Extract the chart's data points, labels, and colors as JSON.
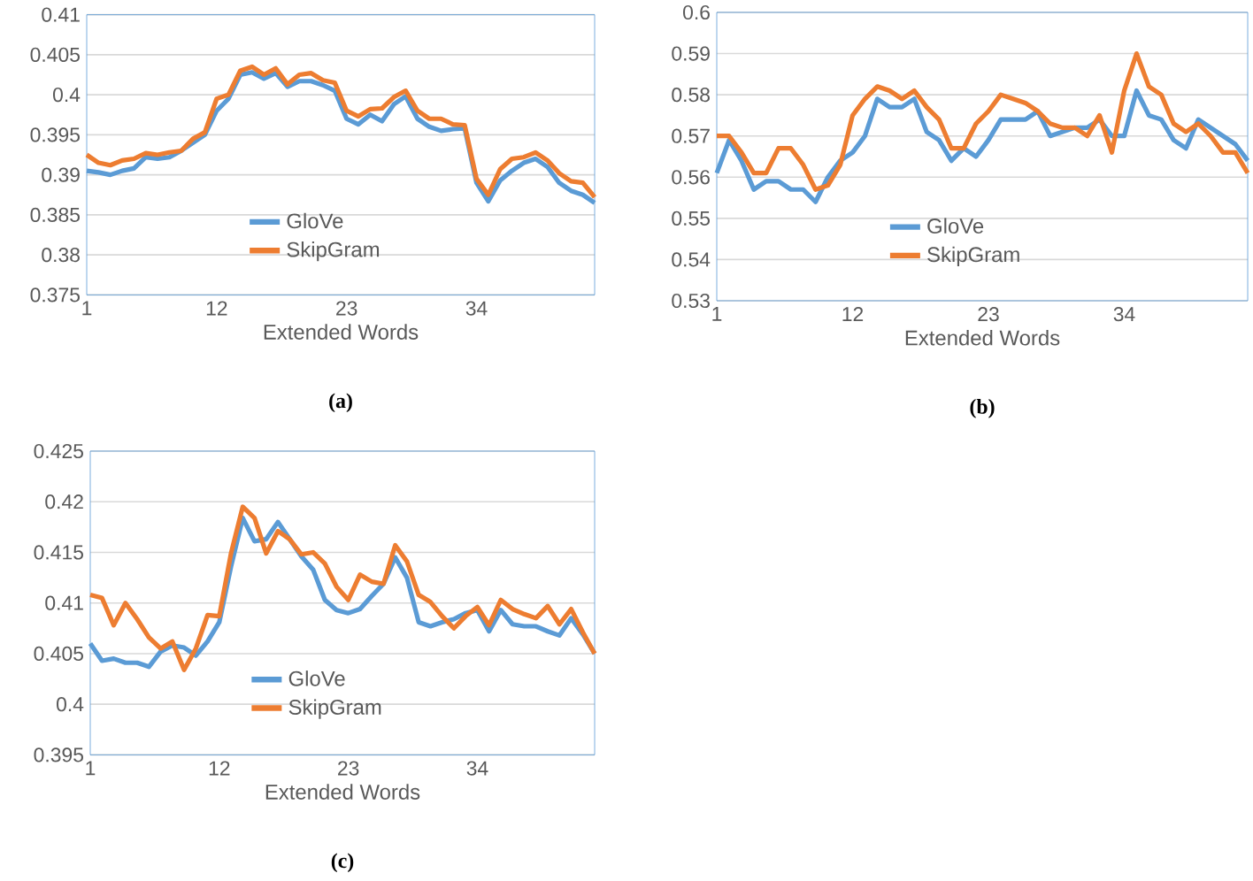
{
  "chart_data": [
    {
      "type": "line",
      "xlabel": "Extended Words",
      "annotations": [
        "(a)"
      ],
      "categories": [
        "1",
        null,
        null,
        null,
        null,
        null,
        null,
        null,
        null,
        null,
        null,
        "12",
        null,
        null,
        null,
        null,
        null,
        null,
        null,
        null,
        null,
        null,
        "23",
        null,
        null,
        null,
        null,
        null,
        null,
        null,
        null,
        null,
        null,
        "34",
        null,
        null,
        null,
        null,
        null,
        null,
        null,
        null,
        null,
        null
      ],
      "series": [
        {
          "name": "GloVe",
          "color": "#5b9bd5",
          "values": [
            0.3905,
            0.3903,
            0.39,
            0.3905,
            0.3908,
            0.3922,
            0.392,
            0.3922,
            0.393,
            0.394,
            0.395,
            0.398,
            0.3995,
            0.4025,
            0.4028,
            0.402,
            0.4027,
            0.401,
            0.4017,
            0.4017,
            0.4012,
            0.4005,
            0.397,
            0.3963,
            0.3975,
            0.3967,
            0.3988,
            0.3998,
            0.397,
            0.396,
            0.3955,
            0.3957,
            0.3958,
            0.389,
            0.3867,
            0.3893,
            0.3905,
            0.3915,
            0.392,
            0.391,
            0.389,
            0.388,
            0.3875,
            0.3865
          ]
        },
        {
          "name": "SkipGram",
          "color": "#ed7d31",
          "values": [
            0.3925,
            0.3915,
            0.3912,
            0.3918,
            0.392,
            0.3927,
            0.3925,
            0.3928,
            0.393,
            0.3945,
            0.3953,
            0.3995,
            0.4,
            0.403,
            0.4035,
            0.4025,
            0.4033,
            0.4013,
            0.4025,
            0.4027,
            0.4018,
            0.4015,
            0.398,
            0.3973,
            0.3982,
            0.3983,
            0.3997,
            0.4005,
            0.398,
            0.397,
            0.397,
            0.3963,
            0.3962,
            0.3895,
            0.3875,
            0.3907,
            0.392,
            0.3922,
            0.3928,
            0.3918,
            0.3902,
            0.3892,
            0.389,
            0.3872
          ]
        }
      ],
      "ylim": [
        0.375,
        0.41
      ],
      "yticks": [
        0.375,
        0.38,
        0.385,
        0.39,
        0.395,
        0.4,
        0.405,
        0.41
      ],
      "grid": "y",
      "legend": "bottom"
    },
    {
      "type": "line",
      "xlabel": "Extended Words",
      "annotations": [
        "(b)"
      ],
      "categories": [
        "1",
        null,
        null,
        null,
        null,
        null,
        null,
        null,
        null,
        null,
        null,
        "12",
        null,
        null,
        null,
        null,
        null,
        null,
        null,
        null,
        null,
        null,
        "23",
        null,
        null,
        null,
        null,
        null,
        null,
        null,
        null,
        null,
        null,
        "34",
        null,
        null,
        null,
        null,
        null,
        null,
        null,
        null,
        null,
        null
      ],
      "series": [
        {
          "name": "GloVe",
          "color": "#5b9bd5",
          "values": [
            0.561,
            0.569,
            0.564,
            0.557,
            0.559,
            0.559,
            0.557,
            0.557,
            0.554,
            0.56,
            0.564,
            0.566,
            0.57,
            0.579,
            0.577,
            0.577,
            0.579,
            0.571,
            0.569,
            0.564,
            0.567,
            0.565,
            0.569,
            0.574,
            0.574,
            0.574,
            0.576,
            0.57,
            0.571,
            0.572,
            0.572,
            0.574,
            0.57,
            0.57,
            0.581,
            0.575,
            0.574,
            0.569,
            0.567,
            0.574,
            0.572,
            0.57,
            0.568,
            0.564
          ]
        },
        {
          "name": "SkipGram",
          "color": "#ed7d31",
          "values": [
            0.57,
            0.57,
            0.566,
            0.561,
            0.561,
            0.567,
            0.567,
            0.563,
            0.557,
            0.558,
            0.563,
            0.575,
            0.579,
            0.582,
            0.581,
            0.579,
            0.581,
            0.577,
            0.574,
            0.567,
            0.567,
            0.573,
            0.576,
            0.58,
            0.579,
            0.578,
            0.576,
            0.573,
            0.572,
            0.572,
            0.57,
            0.575,
            0.566,
            0.581,
            0.59,
            0.582,
            0.58,
            0.573,
            0.571,
            0.573,
            0.57,
            0.566,
            0.566,
            0.561
          ]
        }
      ],
      "ylim": [
        0.53,
        0.6
      ],
      "yticks": [
        0.53,
        0.54,
        0.55,
        0.56,
        0.57,
        0.58,
        0.59,
        0.6
      ],
      "grid": "y",
      "legend": "bottom"
    },
    {
      "type": "line",
      "xlabel": "Extended Words",
      "annotations": [
        "(c)"
      ],
      "categories": [
        "1",
        null,
        null,
        null,
        null,
        null,
        null,
        null,
        null,
        null,
        null,
        "12",
        null,
        null,
        null,
        null,
        null,
        null,
        null,
        null,
        null,
        null,
        "23",
        null,
        null,
        null,
        null,
        null,
        null,
        null,
        null,
        null,
        null,
        "34",
        null,
        null,
        null,
        null,
        null,
        null,
        null,
        null,
        null,
        null
      ],
      "series": [
        {
          "name": "GloVe",
          "color": "#5b9bd5",
          "values": [
            0.406,
            0.4043,
            0.4045,
            0.4041,
            0.4041,
            0.4037,
            0.4052,
            0.4058,
            0.4056,
            0.4048,
            0.4062,
            0.4081,
            0.4136,
            0.4184,
            0.4161,
            0.4163,
            0.418,
            0.4163,
            0.4146,
            0.4133,
            0.4103,
            0.4093,
            0.409,
            0.4094,
            0.4107,
            0.4119,
            0.4145,
            0.4125,
            0.4081,
            0.4077,
            0.4081,
            0.4084,
            0.409,
            0.4093,
            0.4072,
            0.4093,
            0.4079,
            0.4077,
            0.4077,
            0.4072,
            0.4068,
            0.4085,
            0.4069,
            0.405
          ]
        },
        {
          "name": "SkipGram",
          "color": "#ed7d31",
          "values": [
            0.4108,
            0.4105,
            0.4078,
            0.41,
            0.4084,
            0.4066,
            0.4055,
            0.4062,
            0.4034,
            0.4055,
            0.4088,
            0.4087,
            0.4149,
            0.4195,
            0.4184,
            0.4149,
            0.4171,
            0.4163,
            0.4148,
            0.415,
            0.4139,
            0.4116,
            0.4103,
            0.4128,
            0.4121,
            0.4119,
            0.4157,
            0.4141,
            0.4108,
            0.4101,
            0.4087,
            0.4075,
            0.4087,
            0.4096,
            0.4078,
            0.4103,
            0.4094,
            0.4089,
            0.4085,
            0.4097,
            0.4079,
            0.4094,
            0.4071,
            0.405
          ]
        }
      ],
      "ylim": [
        0.395,
        0.425
      ],
      "yticks": [
        0.395,
        0.4,
        0.405,
        0.41,
        0.415,
        0.42,
        0.425
      ],
      "grid": "y",
      "legend": "bottom"
    }
  ]
}
